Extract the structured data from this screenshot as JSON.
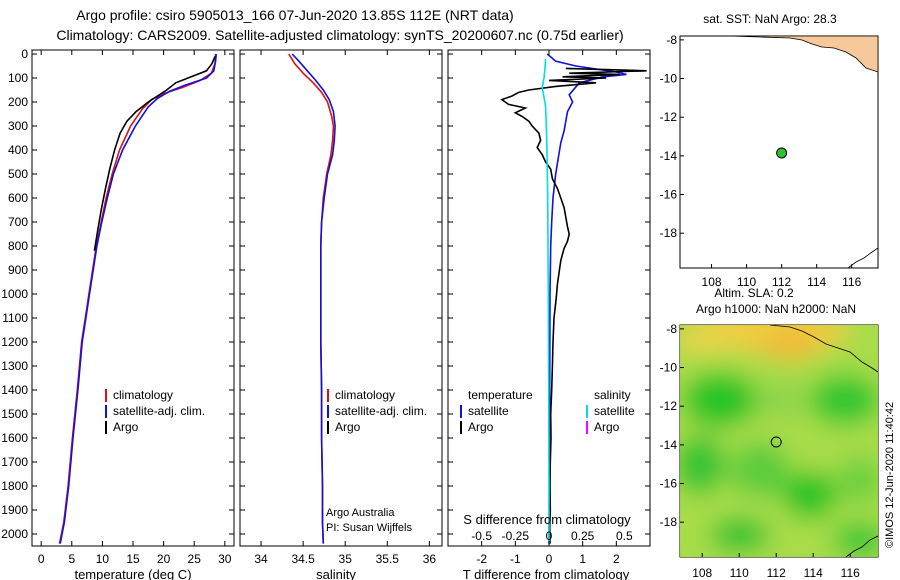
{
  "header": {
    "line1": "Argo profile: csiro 5905013_166 07-Jun-2020 13.85S 112E (NRT data)",
    "line2": "Climatology: CARS2009. Satellite-adjusted climatology: synTS_20200607.nc (0.75d earlier)"
  },
  "colors": {
    "climatology": "#e01010",
    "satellite": "#1010e0",
    "argo": "#000000",
    "sat_salinity": "#00e0e0",
    "argo_salinity": "#ff00ff",
    "land": "#f6c89a",
    "marker": "#30c030"
  },
  "chart_data": [
    {
      "type": "line",
      "name": "temperature",
      "xlabel": "temperature (deg C)",
      "xlim": [
        -1.5,
        31.5
      ],
      "xticks": [
        0,
        5,
        10,
        15,
        20,
        25,
        30
      ],
      "ylim": [
        0,
        2080
      ],
      "yticks": [
        0,
        100,
        200,
        300,
        400,
        500,
        600,
        700,
        800,
        900,
        1000,
        1100,
        1200,
        1300,
        1400,
        1500,
        1600,
        1700,
        1800,
        1900,
        2000
      ],
      "legend": [
        "climatology",
        "satellite-adj. clim.",
        "Argo"
      ],
      "series": [
        {
          "name": "climatology",
          "color": "#e01010",
          "points": [
            [
              28.5,
              0
            ],
            [
              28.4,
              40
            ],
            [
              27.8,
              80
            ],
            [
              26,
              110
            ],
            [
              23,
              140
            ],
            [
              20,
              165
            ],
            [
              18,
              190
            ],
            [
              16.5,
              230
            ],
            [
              14.6,
              300
            ],
            [
              12.8,
              400
            ],
            [
              11.6,
              500
            ],
            [
              10.6,
              600
            ],
            [
              9.8,
              700
            ],
            [
              9,
              800
            ],
            [
              8.4,
              900
            ],
            [
              7.8,
              1000
            ],
            [
              7.2,
              1100
            ],
            [
              6.6,
              1200
            ],
            [
              5.9,
              1400
            ],
            [
              5.1,
              1600
            ],
            [
              4.4,
              1800
            ],
            [
              3.7,
              1950
            ],
            [
              3,
              2040
            ]
          ]
        },
        {
          "name": "satellite-adj. clim.",
          "color": "#1010e0",
          "points": [
            [
              28.6,
              0
            ],
            [
              28.5,
              30
            ],
            [
              28.2,
              70
            ],
            [
              27,
              100
            ],
            [
              23.5,
              130
            ],
            [
              21,
              155
            ],
            [
              19,
              185
            ],
            [
              17.5,
              220
            ],
            [
              15.4,
              300
            ],
            [
              13.3,
              400
            ],
            [
              11.8,
              500
            ],
            [
              10.8,
              600
            ],
            [
              9.9,
              700
            ],
            [
              9.1,
              800
            ],
            [
              8.5,
              900
            ],
            [
              7.9,
              1000
            ],
            [
              7.3,
              1100
            ],
            [
              6.7,
              1200
            ],
            [
              6,
              1400
            ],
            [
              5.2,
              1600
            ],
            [
              4.5,
              1800
            ],
            [
              3.8,
              1950
            ],
            [
              3.1,
              2040
            ]
          ]
        },
        {
          "name": "Argo",
          "color": "#000000",
          "points": [
            [
              28.4,
              10
            ],
            [
              27.9,
              40
            ],
            [
              27,
              70
            ],
            [
              24.5,
              95
            ],
            [
              22,
              120
            ],
            [
              20.5,
              150
            ],
            [
              19,
              175
            ],
            [
              17.5,
              200
            ],
            [
              15.5,
              240
            ],
            [
              14,
              280
            ],
            [
              12.9,
              330
            ],
            [
              12,
              400
            ],
            [
              11.2,
              480
            ],
            [
              10.5,
              560
            ],
            [
              9.8,
              650
            ],
            [
              9.2,
              740
            ],
            [
              8.7,
              820
            ]
          ]
        }
      ]
    },
    {
      "type": "line",
      "name": "salinity",
      "xlabel": "salinity",
      "xlim": [
        33.75,
        36.15
      ],
      "xticks": [
        34,
        34.5,
        35,
        35.5,
        36
      ],
      "xticklabels": [
        "34",
        "34.5",
        "35",
        "35.5",
        "36"
      ],
      "ylim": [
        0,
        2080
      ],
      "legend": [
        "climatology",
        "satellite-adj. clim.",
        "Argo"
      ],
      "credits": [
        "Argo Australia",
        "PI: Susan Wijffels"
      ],
      "series": [
        {
          "name": "climatology",
          "color": "#e01010",
          "points": [
            [
              34.33,
              0
            ],
            [
              34.4,
              40
            ],
            [
              34.5,
              80
            ],
            [
              34.62,
              120
            ],
            [
              34.72,
              160
            ],
            [
              34.79,
              200
            ],
            [
              34.84,
              260
            ],
            [
              34.86,
              300
            ],
            [
              34.85,
              360
            ],
            [
              34.83,
              420
            ],
            [
              34.78,
              500
            ],
            [
              34.74,
              600
            ],
            [
              34.72,
              700
            ],
            [
              34.71,
              800
            ],
            [
              34.71,
              900
            ],
            [
              34.71,
              1000
            ],
            [
              34.71,
              1200
            ],
            [
              34.72,
              1400
            ],
            [
              34.72,
              1600
            ],
            [
              34.73,
              1800
            ],
            [
              34.73,
              1950
            ],
            [
              34.74,
              2040
            ]
          ]
        },
        {
          "name": "satellite-adj. clim.",
          "color": "#1010e0",
          "points": [
            [
              34.37,
              0
            ],
            [
              34.45,
              30
            ],
            [
              34.55,
              70
            ],
            [
              34.65,
              110
            ],
            [
              34.74,
              150
            ],
            [
              34.81,
              190
            ],
            [
              34.86,
              240
            ],
            [
              34.88,
              300
            ],
            [
              34.87,
              360
            ],
            [
              34.85,
              420
            ],
            [
              34.79,
              500
            ],
            [
              34.75,
              600
            ],
            [
              34.72,
              700
            ],
            [
              34.71,
              800
            ],
            [
              34.71,
              900
            ],
            [
              34.71,
              1000
            ],
            [
              34.71,
              1200
            ],
            [
              34.72,
              1400
            ],
            [
              34.72,
              1600
            ],
            [
              34.73,
              1800
            ],
            [
              34.73,
              1950
            ],
            [
              34.74,
              2040
            ]
          ]
        },
        {
          "name": "Argo",
          "color": "#000000",
          "points": []
        }
      ]
    },
    {
      "type": "line",
      "name": "difference",
      "xlabel": "T difference from climatology",
      "sublabel": "S difference from climatology",
      "xlim": [
        -3,
        3
      ],
      "xticks": [
        -2,
        -1,
        0,
        1,
        2
      ],
      "xticklabels": [
        "-2",
        "-1",
        "0",
        "1",
        "2"
      ],
      "sticks": [
        -0.5,
        -0.25,
        0,
        0.25,
        0.5
      ],
      "sticklabels": [
        "-0.5",
        "-0.25",
        "0",
        "0.25",
        "0.5"
      ],
      "ylim": [
        0,
        2080
      ],
      "legend_temperature_title": "temperature",
      "legend_salinity_title": "salinity",
      "legend_temperature": [
        "satellite",
        "Argo"
      ],
      "legend_salinity": [
        "satellite",
        "Argo"
      ],
      "series": [
        {
          "name": "T satellite",
          "color": "#1010e0",
          "points": [
            [
              -0.05,
              0
            ],
            [
              0.2,
              30
            ],
            [
              0.8,
              50
            ],
            [
              2,
              75
            ],
            [
              2.3,
              85
            ],
            [
              1.6,
              95
            ],
            [
              0.9,
              120
            ],
            [
              0.6,
              170
            ],
            [
              0.7,
              200
            ],
            [
              0.55,
              240
            ],
            [
              0.5,
              280
            ],
            [
              0.45,
              320
            ],
            [
              0.35,
              370
            ],
            [
              0.28,
              430
            ],
            [
              0.2,
              500
            ],
            [
              0.12,
              600
            ],
            [
              0.08,
              700
            ],
            [
              0.05,
              800
            ],
            [
              0.03,
              1000
            ],
            [
              0.02,
              1400
            ],
            [
              0.01,
              1800
            ],
            [
              0,
              2040
            ]
          ]
        },
        {
          "name": "T Argo",
          "color": "#000000",
          "points": [
            [
              0.5,
              60
            ],
            [
              2.9,
              70
            ],
            [
              0.6,
              80
            ],
            [
              2.1,
              85
            ],
            [
              0.4,
              95
            ],
            [
              1.7,
              100
            ],
            [
              0,
              110
            ],
            [
              1.4,
              120
            ],
            [
              0.2,
              135
            ],
            [
              -0.6,
              150
            ],
            [
              -0.9,
              160
            ],
            [
              -1.1,
              175
            ],
            [
              -1.4,
              190
            ],
            [
              -1.2,
              210
            ],
            [
              -0.7,
              225
            ],
            [
              -1.0,
              245
            ],
            [
              -0.8,
              260
            ],
            [
              -0.6,
              280
            ],
            [
              -0.5,
              300
            ],
            [
              -0.3,
              330
            ],
            [
              -0.25,
              360
            ],
            [
              -0.35,
              390
            ],
            [
              -0.2,
              420
            ],
            [
              -0.1,
              450
            ],
            [
              0.05,
              480
            ],
            [
              0.1,
              520
            ],
            [
              0.25,
              560
            ],
            [
              0.35,
              600
            ],
            [
              0.45,
              640
            ],
            [
              0.5,
              680
            ],
            [
              0.55,
              720
            ],
            [
              0.6,
              750
            ],
            [
              0.55,
              780
            ],
            [
              0.45,
              810
            ],
            [
              0.35,
              860
            ],
            [
              0.3,
              910
            ],
            [
              0.25,
              960
            ],
            [
              0.22,
              1010
            ],
            [
              0.15,
              1100
            ],
            [
              0.12,
              1200
            ],
            [
              0.1,
              1300
            ],
            [
              0.08,
              1400
            ],
            [
              0.05,
              1500
            ],
            [
              0.06,
              1600
            ],
            [
              0.04,
              1700
            ],
            [
              0.03,
              1800
            ],
            [
              0.04,
              1900
            ],
            [
              0.02,
              1970
            ],
            [
              0.03,
              2040
            ]
          ]
        },
        {
          "name": "S satellite",
          "color": "#00e0e0",
          "points": [
            [
              -0.1,
              20
            ],
            [
              -0.12,
              60
            ],
            [
              -0.15,
              100
            ],
            [
              -0.2,
              140
            ],
            [
              -0.15,
              180
            ],
            [
              -0.1,
              220
            ],
            [
              -0.08,
              300
            ],
            [
              -0.06,
              400
            ],
            [
              -0.05,
              500
            ],
            [
              -0.04,
              600
            ],
            [
              -0.03,
              800
            ],
            [
              -0.02,
              1000
            ],
            [
              -0.01,
              1400
            ],
            [
              0,
              1800
            ],
            [
              0,
              2040
            ]
          ]
        }
      ]
    },
    {
      "type": "scatter",
      "name": "sst-map",
      "title": "sat. SST: NaN Argo: 28.3",
      "xlim": [
        106.2,
        117.5
      ],
      "ylim": [
        -19.8,
        -7.8
      ],
      "xticks": [
        108,
        110,
        112,
        114,
        116
      ],
      "yticks": [
        -8,
        -10,
        -12,
        -14,
        -16,
        -18
      ],
      "points": [
        [
          112,
          -13.85
        ]
      ]
    },
    {
      "type": "heatmap",
      "name": "sla-map",
      "title": "Altim. SLA: 0.2",
      "subtitle": "Argo h1000: NaN h2000: NaN",
      "xlim": [
        106.8,
        117.5
      ],
      "ylim": [
        -19.8,
        -7.8
      ],
      "xticks": [
        108,
        110,
        112,
        114,
        116
      ],
      "yticks": [
        -8,
        -10,
        -12,
        -14,
        -16,
        -18
      ],
      "points": [
        [
          112,
          -13.85
        ]
      ]
    }
  ],
  "footer": {
    "imos_stamp": "©IMOS 12-Jun-2020 11:40:42"
  }
}
